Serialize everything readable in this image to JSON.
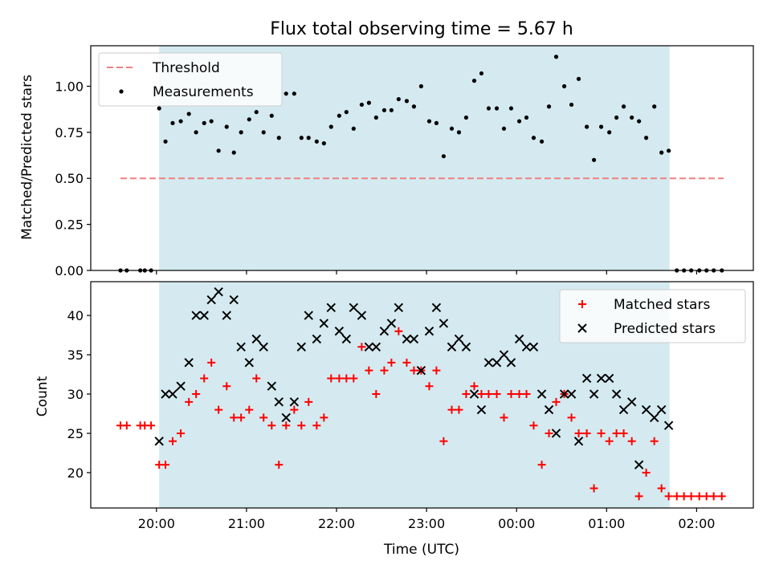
{
  "chart_data": {
    "title": "Flux total observing time = 5.67 h",
    "xlabel": "Time (UTC)",
    "x_ticks": [
      "20:00",
      "21:00",
      "22:00",
      "23:00",
      "00:00",
      "01:00",
      "02:00"
    ],
    "x_units": "hours since 20:00 UTC",
    "xlim": [
      -0.73,
      6.63
    ],
    "shaded_interval": [
      0.03,
      5.7
    ],
    "shade_color": "#d4eaf0",
    "panels": [
      {
        "type": "scatter",
        "ylabel": "Matched/Predicted stars",
        "ylim": [
          0.0,
          1.22
        ],
        "y_ticks": [
          "0.00",
          "0.25",
          "0.50",
          "0.75",
          "1.00"
        ],
        "legend_position": "upper-left",
        "series": [
          {
            "name": "Threshold",
            "style": "dashed-line",
            "color": "#f08080",
            "x": [
              -0.4,
              6.3
            ],
            "y": [
              0.5,
              0.5
            ]
          },
          {
            "name": "Measurements",
            "style": "dot",
            "color": "#000000",
            "x": [
              -0.4,
              -0.33,
              -0.18,
              -0.13,
              -0.06,
              0.03,
              0.1,
              0.18,
              0.27,
              0.36,
              0.44,
              0.53,
              0.61,
              0.69,
              0.78,
              0.86,
              0.94,
              1.03,
              1.11,
              1.19,
              1.28,
              1.36,
              1.44,
              1.53,
              1.61,
              1.69,
              1.78,
              1.86,
              1.94,
              2.03,
              2.11,
              2.19,
              2.28,
              2.36,
              2.44,
              2.53,
              2.61,
              2.69,
              2.78,
              2.86,
              2.94,
              3.03,
              3.11,
              3.19,
              3.28,
              3.36,
              3.44,
              3.53,
              3.61,
              3.69,
              3.78,
              3.86,
              3.94,
              4.03,
              4.11,
              4.19,
              4.28,
              4.36,
              4.44,
              4.53,
              4.61,
              4.69,
              4.78,
              4.86,
              4.94,
              5.03,
              5.11,
              5.19,
              5.28,
              5.36,
              5.44,
              5.53,
              5.61,
              5.69,
              5.78,
              5.86,
              5.94,
              6.03,
              6.11,
              6.19,
              6.28
            ],
            "y": [
              0.0,
              0.0,
              0.0,
              0.0,
              0.0,
              0.88,
              0.7,
              0.8,
              0.81,
              0.85,
              0.75,
              0.8,
              0.81,
              0.65,
              0.78,
              0.64,
              0.75,
              0.82,
              0.86,
              0.75,
              0.84,
              0.72,
              0.96,
              0.96,
              0.72,
              0.72,
              0.7,
              0.69,
              0.78,
              0.84,
              0.86,
              0.77,
              0.9,
              0.91,
              0.83,
              0.87,
              0.87,
              0.93,
              0.92,
              0.89,
              1.0,
              0.81,
              0.8,
              0.62,
              0.77,
              0.75,
              0.83,
              1.03,
              1.07,
              0.88,
              0.88,
              0.77,
              0.88,
              0.81,
              0.83,
              0.72,
              0.7,
              0.89,
              1.16,
              1.0,
              0.9,
              1.04,
              0.78,
              0.6,
              0.78,
              0.75,
              0.83,
              0.89,
              0.83,
              0.81,
              0.72,
              0.89,
              0.64,
              0.65,
              0.0,
              0.0,
              0.0,
              0.0,
              0.0,
              0.0,
              0.0
            ]
          }
        ]
      },
      {
        "type": "scatter",
        "ylabel": "Count",
        "ylim": [
          15.5,
          44.3
        ],
        "y_ticks": [
          "20",
          "25",
          "30",
          "35",
          "40"
        ],
        "legend_position": "upper-right",
        "series": [
          {
            "name": "Matched stars",
            "style": "plus",
            "color": "#ff0000",
            "x": [
              -0.4,
              -0.33,
              -0.18,
              -0.13,
              -0.06,
              0.03,
              0.1,
              0.18,
              0.27,
              0.36,
              0.44,
              0.53,
              0.61,
              0.69,
              0.78,
              0.86,
              0.94,
              1.03,
              1.11,
              1.19,
              1.28,
              1.36,
              1.44,
              1.53,
              1.61,
              1.69,
              1.78,
              1.86,
              1.94,
              2.03,
              2.11,
              2.19,
              2.28,
              2.36,
              2.44,
              2.53,
              2.61,
              2.69,
              2.78,
              2.86,
              2.94,
              3.03,
              3.11,
              3.19,
              3.28,
              3.36,
              3.44,
              3.53,
              3.61,
              3.69,
              3.78,
              3.86,
              3.94,
              4.03,
              4.11,
              4.19,
              4.28,
              4.36,
              4.44,
              4.53,
              4.61,
              4.69,
              4.78,
              4.86,
              4.94,
              5.03,
              5.11,
              5.19,
              5.28,
              5.36,
              5.44,
              5.53,
              5.61,
              5.69,
              5.78,
              5.86,
              5.94,
              6.03,
              6.11,
              6.19,
              6.28
            ],
            "y": [
              26,
              26,
              26,
              26,
              26,
              21,
              21,
              24,
              25,
              29,
              30,
              32,
              34,
              28,
              31,
              27,
              27,
              28,
              32,
              27,
              26,
              21,
              26,
              28,
              26,
              29,
              26,
              27,
              32,
              32,
              32,
              32,
              36,
              33,
              30,
              33,
              34,
              38,
              34,
              33,
              33,
              31,
              33,
              24,
              28,
              28,
              30,
              31,
              30,
              30,
              30,
              27,
              30,
              30,
              30,
              26,
              21,
              25,
              29,
              30,
              27,
              25,
              25,
              18,
              25,
              24,
              25,
              25,
              24,
              17,
              20,
              24,
              18,
              17,
              17,
              17,
              17,
              17,
              17,
              17,
              17
            ]
          },
          {
            "name": "Predicted stars",
            "style": "cross",
            "color": "#000000",
            "x": [
              0.03,
              0.1,
              0.18,
              0.27,
              0.36,
              0.44,
              0.53,
              0.61,
              0.69,
              0.78,
              0.86,
              0.94,
              1.03,
              1.11,
              1.19,
              1.28,
              1.36,
              1.44,
              1.53,
              1.61,
              1.69,
              1.78,
              1.86,
              1.94,
              2.03,
              2.11,
              2.19,
              2.28,
              2.36,
              2.44,
              2.53,
              2.61,
              2.69,
              2.78,
              2.86,
              2.94,
              3.03,
              3.11,
              3.19,
              3.28,
              3.36,
              3.44,
              3.53,
              3.61,
              3.69,
              3.78,
              3.86,
              3.94,
              4.03,
              4.11,
              4.19,
              4.28,
              4.36,
              4.44,
              4.53,
              4.61,
              4.69,
              4.78,
              4.86,
              4.94,
              5.03,
              5.11,
              5.19,
              5.28,
              5.36,
              5.44,
              5.53,
              5.61,
              5.69
            ],
            "y": [
              24,
              30,
              30,
              31,
              34,
              40,
              40,
              42,
              43,
              40,
              42,
              36,
              34,
              37,
              36,
              31,
              29,
              27,
              29,
              36,
              40,
              37,
              39,
              41,
              38,
              37,
              41,
              40,
              36,
              36,
              38,
              39,
              41,
              37,
              37,
              33,
              38,
              41,
              39,
              36,
              37,
              36,
              30,
              28,
              34,
              34,
              35,
              34,
              37,
              36,
              36,
              30,
              28,
              25,
              30,
              30,
              24,
              32,
              30,
              32,
              32,
              30,
              28,
              29,
              21,
              28,
              27,
              28,
              26
            ]
          }
        ]
      }
    ]
  }
}
